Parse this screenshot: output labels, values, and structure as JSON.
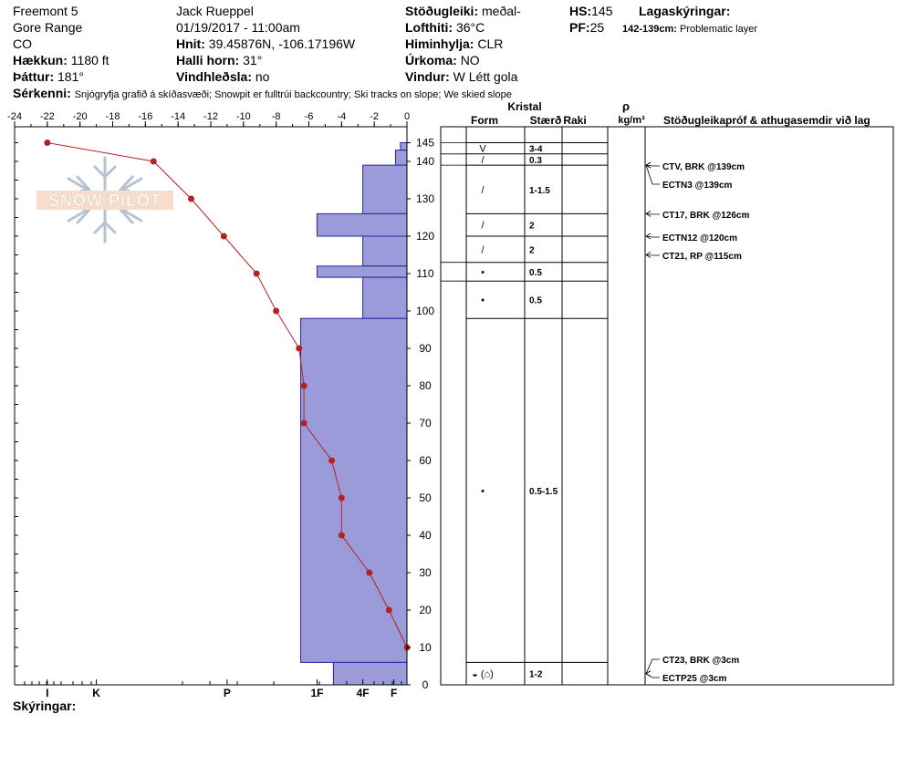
{
  "header": {
    "site": "Freemont 5",
    "range": "Gore Range",
    "state": "CO",
    "elevation_label": "Hækkun:",
    "elevation_value": "1180 ft",
    "aspect_label": "Þáttur:",
    "aspect_value": "181°",
    "observer": "Jack Rueppel",
    "datetime": "01/19/2017 - 11:00am",
    "coords_label": "Hnit:",
    "coords_value": "39.45876N, -106.17196W",
    "slope_label": "Halli horn:",
    "slope_value": "31°",
    "wind_loading_label": "Vindhleðsla:",
    "wind_loading_value": "no",
    "stability_label": "Stöðugleiki:",
    "stability_value": "meðal-",
    "airtemp_label": "Lofthiti:",
    "airtemp_value": "36°C",
    "sky_label": "Himinhylja:",
    "sky_value": "CLR",
    "precip_label": "Úrkoma:",
    "precip_value": "NO",
    "wind_label": "Vindur:",
    "wind_value": "W Létt gola",
    "hs_label": "HS:",
    "hs_value": "145",
    "pf_label": "PF:",
    "pf_value": "25",
    "layer_notes_label": "Lagaskýringar:",
    "layer_note_range": "142-139cm:",
    "layer_note_text": "Problematic layer",
    "features_label": "Sérkenni:",
    "features_value": "Snjógryfja grafið á skíðasvæði; Snowpit er fulltrúi backcountry; Ski tracks on slope; We skied slope",
    "notes_label": "Skýringar:"
  },
  "table_headers": {
    "crystal": "Kristal",
    "form": "Form",
    "size": "Stærð",
    "moisture": "Raki",
    "rho": "ρ",
    "density_unit": "kg/m³",
    "stability_tests": "Stöðugleikapróf & athugasemdir við lag"
  },
  "logo": {
    "text": "SNOW PILOT"
  },
  "colors": {
    "hardness_fill": "#9b9bd9",
    "hardness_stroke": "#2222aa",
    "temp_line": "#b22222"
  },
  "chart_data": {
    "type": "line",
    "temp_axis": {
      "range": [
        -24,
        0
      ],
      "ticks": [
        -24,
        -22,
        -20,
        -18,
        -16,
        -14,
        -12,
        -10,
        -8,
        -6,
        -4,
        -2,
        0
      ]
    },
    "height_axis": {
      "range": [
        0,
        150
      ],
      "ticks": [
        0,
        10,
        20,
        30,
        40,
        50,
        60,
        70,
        80,
        90,
        100,
        110,
        120,
        130,
        140,
        145
      ]
    },
    "hardness_axis": {
      "labels": [
        "I",
        "K",
        "P",
        "1F",
        "4F",
        "F"
      ],
      "values": [
        22,
        19,
        11,
        5.5,
        2.7,
        0.8
      ]
    },
    "temperature_profile": [
      {
        "height": 145,
        "temp": -22
      },
      {
        "height": 140,
        "temp": -15.5
      },
      {
        "height": 130,
        "temp": -13.2
      },
      {
        "height": 120,
        "temp": -11.2
      },
      {
        "height": 110,
        "temp": -9.2
      },
      {
        "height": 100,
        "temp": -8
      },
      {
        "height": 90,
        "temp": -6.6
      },
      {
        "height": 80,
        "temp": -6.3
      },
      {
        "height": 70,
        "temp": -6.3
      },
      {
        "height": 60,
        "temp": -4.6
      },
      {
        "height": 50,
        "temp": -4
      },
      {
        "height": 40,
        "temp": -4
      },
      {
        "height": 30,
        "temp": -2.3
      },
      {
        "height": 20,
        "temp": -1.1
      },
      {
        "height": 10,
        "temp": 0
      }
    ],
    "hardness_layers": [
      {
        "bottom": 143,
        "top": 145,
        "hardness": 0.4
      },
      {
        "bottom": 139,
        "top": 143,
        "hardness": 0.7
      },
      {
        "bottom": 126,
        "top": 139,
        "hardness": 2.7
      },
      {
        "bottom": 120,
        "top": 126,
        "hardness": 5.5
      },
      {
        "bottom": 112,
        "top": 120,
        "hardness": 2.7
      },
      {
        "bottom": 109,
        "top": 112,
        "hardness": 5.5
      },
      {
        "bottom": 98,
        "top": 109,
        "hardness": 2.7
      },
      {
        "bottom": 6,
        "top": 98,
        "hardness": 6.5
      },
      {
        "bottom": 0,
        "top": 6,
        "hardness": 4.5
      }
    ],
    "layers": [
      {
        "top": 145,
        "bottom": 142,
        "form": "V",
        "size": "3-4"
      },
      {
        "top": 142,
        "bottom": 139,
        "form": "/",
        "size": "0.3"
      },
      {
        "top": 139,
        "bottom": 126,
        "form": "/",
        "size": "1-1.5"
      },
      {
        "top": 126,
        "bottom": 120,
        "form": "/",
        "size": "2"
      },
      {
        "top": 120,
        "bottom": 113,
        "form": "/",
        "size": "2"
      },
      {
        "top": 113,
        "bottom": 108,
        "form": "•",
        "size": "0.5"
      },
      {
        "top": 108,
        "bottom": 98,
        "form": "•",
        "size": "0.5"
      },
      {
        "top": 98,
        "bottom": 6,
        "form": "•",
        "size": "0.5-1.5"
      },
      {
        "top": 6,
        "bottom": 0,
        "form": "◒ (⌂)",
        "size": "1-2"
      }
    ],
    "stability_tests": [
      {
        "label": "CTV, BRK @139cm",
        "height": 139
      },
      {
        "label": "ECTN3 @139cm",
        "height": 139
      },
      {
        "label": "CT17, BRK @126cm",
        "height": 126
      },
      {
        "label": "ECTN12 @120cm",
        "height": 120
      },
      {
        "label": "CT21, RP @115cm",
        "height": 115
      },
      {
        "label": "CT23, BRK @3cm",
        "height": 3
      },
      {
        "label": "ECTP25 @3cm",
        "height": 3
      }
    ]
  }
}
